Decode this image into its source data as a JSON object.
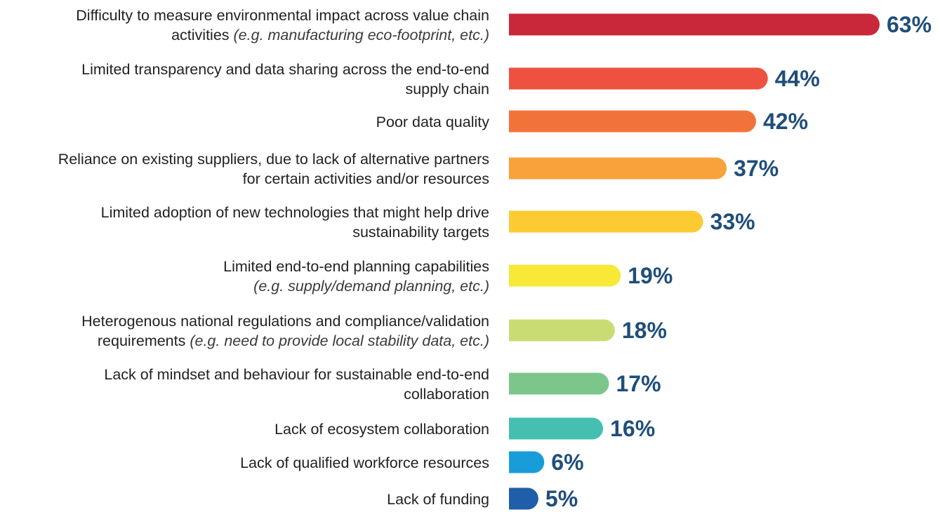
{
  "chart_data": {
    "type": "bar",
    "orientation": "horizontal",
    "unit": "%",
    "categories": [
      {
        "lines": [
          {
            "text": "Difficulty to measure environmental impact across value chain"
          },
          {
            "text": "activities ",
            "note": "(e.g. manufacturing eco-footprint, etc.)"
          }
        ]
      },
      {
        "lines": [
          {
            "text": "Limited transparency and data sharing across the end-to-end"
          },
          {
            "text": "supply chain"
          }
        ]
      },
      {
        "lines": [
          {
            "text": "Poor data quality"
          }
        ]
      },
      {
        "lines": [
          {
            "text": "Reliance on existing suppliers, due to lack of alternative partners"
          },
          {
            "text": "for certain activities and/or resources"
          }
        ]
      },
      {
        "lines": [
          {
            "text": "Limited adoption of new technologies that might help drive"
          },
          {
            "text": "sustainability targets"
          }
        ]
      },
      {
        "lines": [
          {
            "text": "Limited end-to-end planning capabilities"
          },
          {
            "text": "",
            "note": "(e.g. supply/demand planning, etc.)"
          }
        ]
      },
      {
        "lines": [
          {
            "text": "Heterogenous national regulations and compliance/validation"
          },
          {
            "text": "requirements ",
            "note": "(e.g. need to provide local stability data, etc.)"
          }
        ]
      },
      {
        "lines": [
          {
            "text": "Lack of mindset and behaviour for sustainable end-to-end"
          },
          {
            "text": "collaboration"
          }
        ]
      },
      {
        "lines": [
          {
            "text": "Lack of ecosystem collaboration"
          }
        ]
      },
      {
        "lines": [
          {
            "text": "Lack of qualified workforce resources"
          }
        ]
      },
      {
        "lines": [
          {
            "text": "Lack of funding"
          }
        ]
      }
    ],
    "values": [
      63,
      44,
      42,
      37,
      33,
      19,
      18,
      17,
      16,
      6,
      5
    ],
    "value_labels": [
      "63%",
      "44%",
      "42%",
      "37%",
      "33%",
      "19%",
      "18%",
      "17%",
      "16%",
      "6%",
      "5%"
    ],
    "bar_colors": [
      "#c8283a",
      "#ef5140",
      "#f2733a",
      "#f9a23b",
      "#fccb34",
      "#f7e935",
      "#c8dc73",
      "#7cc68c",
      "#45c0b0",
      "#199dd9",
      "#1f5ea8"
    ],
    "xlim": [
      0,
      63
    ],
    "grid": false,
    "legend": "none"
  }
}
